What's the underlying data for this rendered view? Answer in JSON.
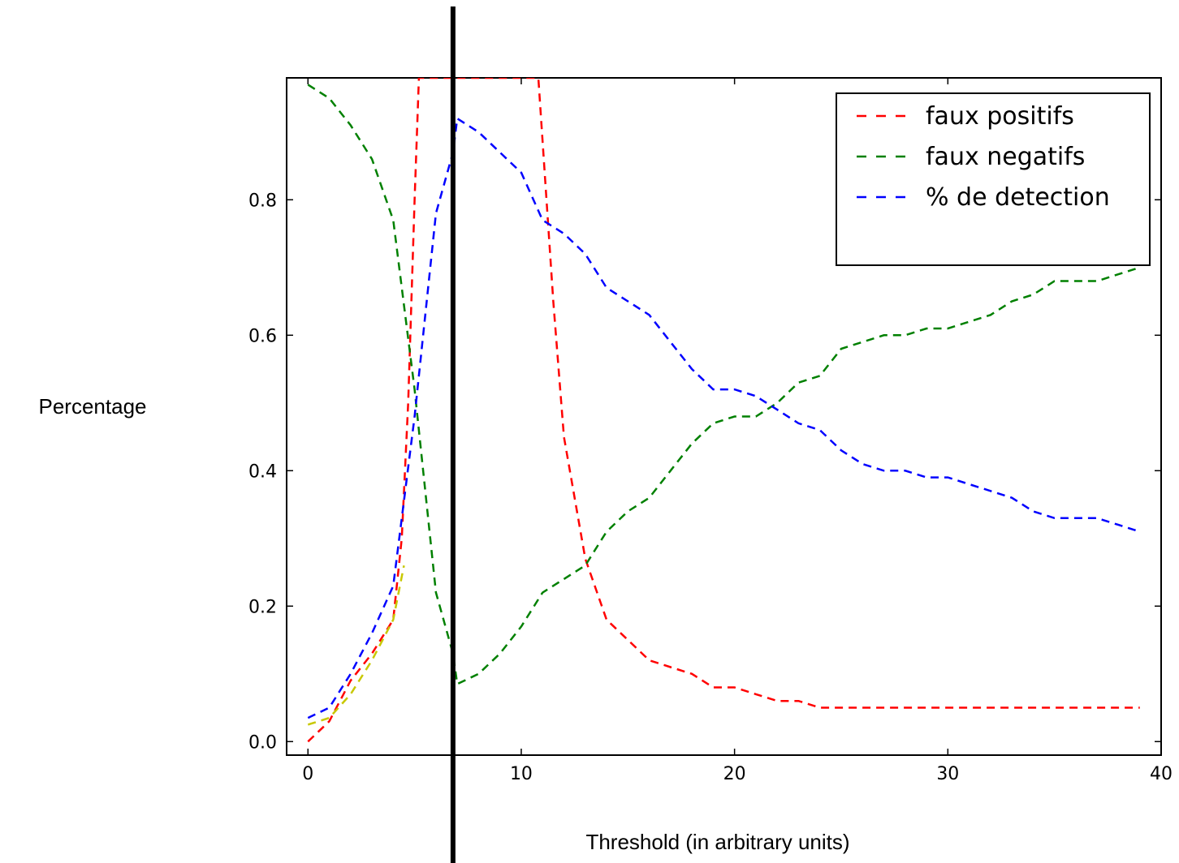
{
  "chart_data": {
    "type": "line",
    "title": "",
    "xlabel": "Threshold (in arbitrary units)",
    "ylabel": "Percentage",
    "xlim": [
      -1,
      40
    ],
    "ylim": [
      -0.02,
      0.98
    ],
    "xticks": [
      0,
      10,
      20,
      30,
      40
    ],
    "yticks": [
      0.0,
      0.2,
      0.4,
      0.6,
      0.8
    ],
    "xtick_labels": [
      "0",
      "10",
      "20",
      "30",
      "40"
    ],
    "ytick_labels": [
      "0.0",
      "0.2",
      "0.4",
      "0.6",
      "0.8"
    ],
    "grid": false,
    "legend_position": "top-right",
    "vertical_marker_x": 6.8,
    "series": [
      {
        "name": "faux positifs",
        "color": "#ff0000",
        "x": [
          0,
          1,
          2,
          3,
          4,
          4.4,
          4.7,
          5.0,
          5.2,
          10.8,
          11.5,
          12,
          13,
          14,
          15,
          16,
          17,
          18,
          19,
          20,
          21,
          22,
          23,
          24,
          25,
          26,
          27,
          28,
          29,
          30,
          31,
          32,
          33,
          34,
          35,
          36,
          37,
          38,
          39
        ],
        "y": [
          0.0,
          0.03,
          0.09,
          0.13,
          0.18,
          0.3,
          0.5,
          0.8,
          0.98,
          0.98,
          0.65,
          0.45,
          0.27,
          0.18,
          0.15,
          0.12,
          0.11,
          0.1,
          0.08,
          0.08,
          0.07,
          0.06,
          0.06,
          0.05,
          0.05,
          0.05,
          0.05,
          0.05,
          0.05,
          0.05,
          0.05,
          0.05,
          0.05,
          0.05,
          0.05,
          0.05,
          0.05,
          0.05,
          0.05
        ]
      },
      {
        "name": "faux negatifs",
        "color": "#008000",
        "x": [
          0,
          1,
          2,
          3,
          4,
          5,
          6,
          6.8,
          7,
          8,
          9,
          10,
          11,
          12,
          13,
          14,
          15,
          16,
          17,
          18,
          19,
          20,
          21,
          22,
          23,
          24,
          25,
          26,
          27,
          28,
          29,
          30,
          31,
          32,
          33,
          34,
          35,
          36,
          37,
          38,
          39
        ],
        "y": [
          0.97,
          0.95,
          0.91,
          0.86,
          0.77,
          0.52,
          0.22,
          0.13,
          0.085,
          0.1,
          0.13,
          0.17,
          0.22,
          0.24,
          0.26,
          0.31,
          0.34,
          0.36,
          0.4,
          0.44,
          0.47,
          0.48,
          0.48,
          0.5,
          0.53,
          0.54,
          0.58,
          0.59,
          0.6,
          0.6,
          0.61,
          0.61,
          0.62,
          0.63,
          0.65,
          0.66,
          0.68,
          0.68,
          0.68,
          0.69,
          0.7
        ]
      },
      {
        "name": "% de detection",
        "color": "#0000ff",
        "x": [
          0,
          1,
          2,
          3,
          4,
          5,
          6,
          6.8,
          7,
          8,
          9,
          10,
          11,
          12,
          13,
          14,
          15,
          16,
          17,
          18,
          19,
          20,
          21,
          22,
          23,
          24,
          25,
          26,
          27,
          28,
          29,
          30,
          31,
          32,
          33,
          34,
          35,
          36,
          37,
          38,
          39
        ],
        "y": [
          0.035,
          0.05,
          0.1,
          0.16,
          0.23,
          0.48,
          0.78,
          0.87,
          0.92,
          0.9,
          0.87,
          0.84,
          0.77,
          0.75,
          0.72,
          0.67,
          0.65,
          0.63,
          0.59,
          0.55,
          0.52,
          0.52,
          0.51,
          0.49,
          0.47,
          0.46,
          0.43,
          0.41,
          0.4,
          0.4,
          0.39,
          0.39,
          0.38,
          0.37,
          0.36,
          0.34,
          0.33,
          0.33,
          0.33,
          0.32,
          0.31
        ]
      },
      {
        "name": "",
        "color": "#c8c800",
        "x": [
          0,
          1,
          2,
          3,
          4,
          4.5
        ],
        "y": [
          0.025,
          0.035,
          0.07,
          0.12,
          0.18,
          0.26
        ]
      }
    ]
  }
}
